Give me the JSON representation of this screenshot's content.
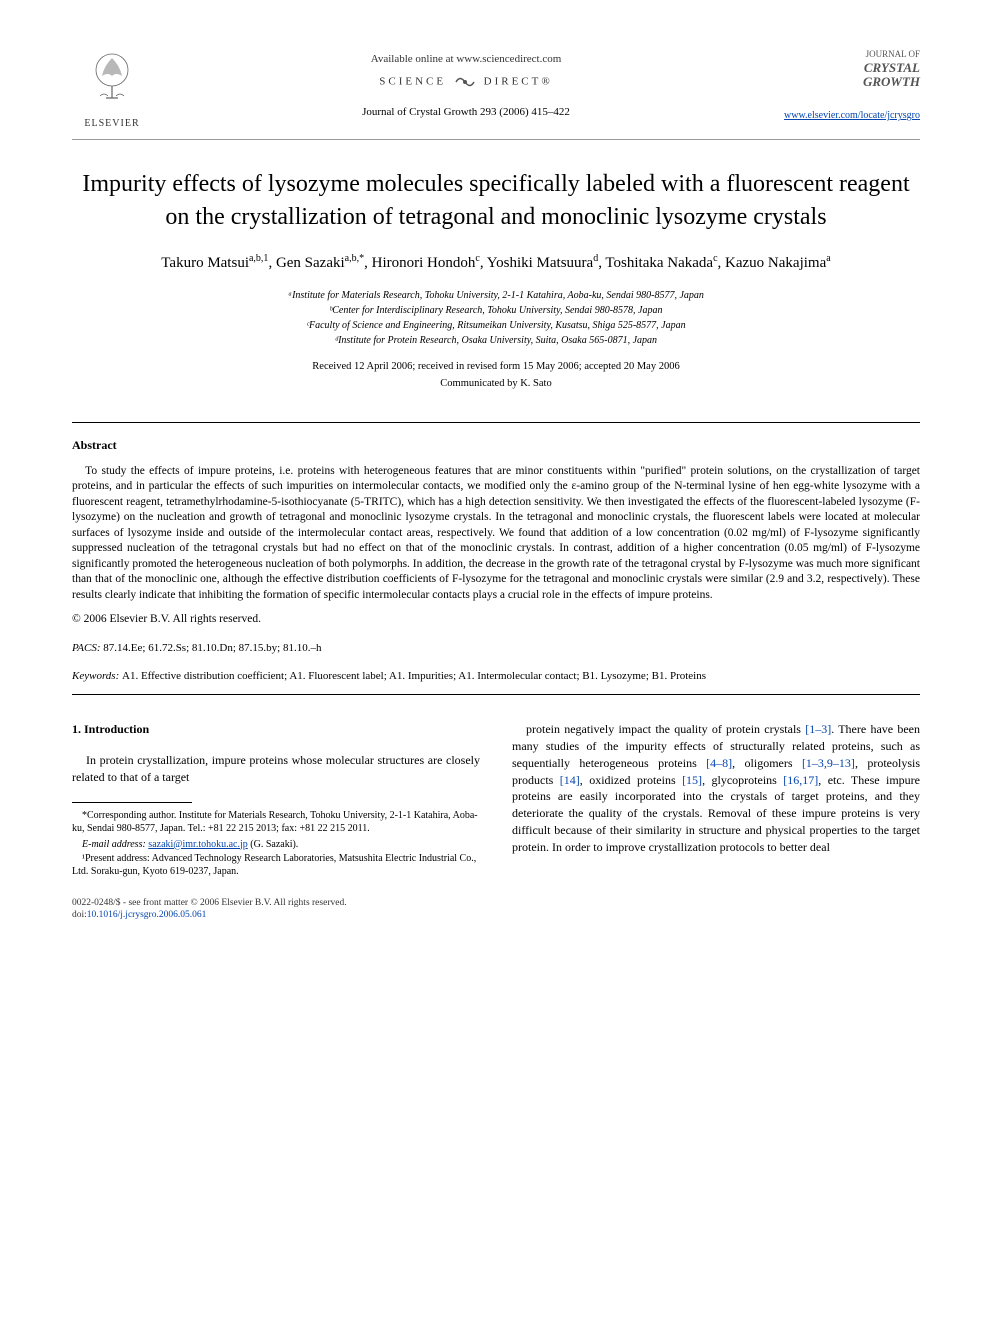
{
  "header": {
    "available_online": "Available online at www.sciencedirect.com",
    "science_direct": "SCIENCE",
    "science_direct2": "DIRECT®",
    "journal_ref": "Journal of Crystal Growth 293 (2006) 415–422",
    "elsevier": "ELSEVIER",
    "journal_logo_small": "JOURNAL OF",
    "journal_logo_bold1": "CRYSTAL",
    "journal_logo_bold2": "GROWTH",
    "journal_link": "www.elsevier.com/locate/jcrysgro"
  },
  "title": "Impurity effects of lysozyme molecules specifically labeled with a fluorescent reagent on the crystallization of tetragonal and monoclinic lysozyme crystals",
  "authors_html": "Takuro Matsui<sup>a,b,1</sup>, Gen Sazaki<sup>a,b,*</sup>, Hironori Hondoh<sup>c</sup>, Yoshiki Matsuura<sup>d</sup>, Toshitaka Nakada<sup>c</sup>, Kazuo Nakajima<sup>a</sup>",
  "affiliations": [
    "ᵃInstitute for Materials Research, Tohoku University, 2-1-1 Katahira, Aoba-ku, Sendai 980-8577, Japan",
    "ᵇCenter for Interdisciplinary Research, Tohoku University, Sendai 980-8578, Japan",
    "ᶜFaculty of Science and Engineering, Ritsumeikan University, Kusatsu, Shiga 525-8577, Japan",
    "ᵈInstitute for Protein Research, Osaka University, Suita, Osaka 565-0871, Japan"
  ],
  "dates": "Received 12 April 2006; received in revised form 15 May 2006; accepted 20 May 2006",
  "communicated": "Communicated by K. Sato",
  "abstract_heading": "Abstract",
  "abstract": "To study the effects of impure proteins, i.e. proteins with heterogeneous features that are minor constituents within \"purified\" protein solutions, on the crystallization of target proteins, and in particular the effects of such impurities on intermolecular contacts, we modified only the ε-amino group of the N-terminal lysine of hen egg-white lysozyme with a fluorescent reagent, tetramethylrhodamine-5-isothiocyanate (5-TRITC), which has a high detection sensitivity. We then investigated the effects of the fluorescent-labeled lysozyme (F-lysozyme) on the nucleation and growth of tetragonal and monoclinic lysozyme crystals. In the tetragonal and monoclinic crystals, the fluorescent labels were located at molecular surfaces of lysozyme inside and outside of the intermolecular contact areas, respectively. We found that addition of a low concentration (0.02 mg/ml) of F-lysozyme significantly suppressed nucleation of the tetragonal crystals but had no effect on that of the monoclinic crystals. In contrast, addition of a higher concentration (0.05 mg/ml) of F-lysozyme significantly promoted the heterogeneous nucleation of both polymorphs. In addition, the decrease in the growth rate of the tetragonal crystal by F-lysozyme was much more significant than that of the monoclinic one, although the effective distribution coefficients of F-lysozyme for the tetragonal and monoclinic crystals were similar (2.9 and 3.2, respectively). These results clearly indicate that inhibiting the formation of specific intermolecular contacts plays a crucial role in the effects of impure proteins.",
  "copyright": "© 2006 Elsevier B.V. All rights reserved.",
  "pacs_label": "PACS:",
  "pacs": "87.14.Ee; 61.72.Ss; 81.10.Dn; 87.15.by; 81.10.–h",
  "keywords_label": "Keywords:",
  "keywords": "A1. Effective distribution coefficient; A1. Fluorescent label; A1. Impurities; A1. Intermolecular contact; B1. Lysozyme; B1. Proteins",
  "section1_heading": "1. Introduction",
  "intro_col1": "In protein crystallization, impure proteins whose molecular structures are closely related to that of a target",
  "intro_col2_parts": {
    "p1": "protein negatively impact the quality of protein crystals ",
    "c1": "[1–3]",
    "p2": ". There have been many studies of the impurity effects of structurally related proteins, such as sequentially heterogeneous proteins ",
    "c2": "[4–8]",
    "p3": ", oligomers ",
    "c3": "[1–3,9–13]",
    "p4": ", proteolysis products ",
    "c4": "[14]",
    "p5": ", oxidized proteins ",
    "c5": "[15]",
    "p6": ", glycoproteins ",
    "c6": "[16,17]",
    "p7": ", etc. These impure proteins are easily incorporated into the crystals of target proteins, and they deteriorate the quality of the crystals. Removal of these impure proteins is very difficult because of their similarity in structure and physical properties to the target protein. In order to improve crystallization protocols to better deal"
  },
  "footnotes": {
    "corr": "*Corresponding author. Institute for Materials Research, Tohoku University, 2-1-1 Katahira, Aoba-ku, Sendai 980-8577, Japan. Tel.: +81 22 215 2013; fax: +81 22 215 2011.",
    "email_label": "E-mail address:",
    "email": "sazaki@imr.tohoku.ac.jp",
    "email_tail": "(G. Sazaki).",
    "present": "¹Present address: Advanced Technology Research Laboratories, Matsushita Electric Industrial Co., Ltd. Soraku-gun, Kyoto 619-0237, Japan."
  },
  "bottom": {
    "line1": "0022-0248/$ - see front matter © 2006 Elsevier B.V. All rights reserved.",
    "doi_label": "doi:",
    "doi": "10.1016/j.jcrysgro.2006.05.061"
  },
  "colors": {
    "link": "#0645ad",
    "text": "#000000",
    "rule": "#000000"
  }
}
